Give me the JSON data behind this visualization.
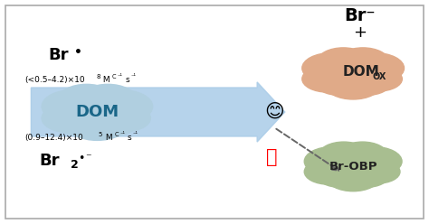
{
  "bg_color": "#ffffff",
  "border_color": "#aaaaaa",
  "arrow_color": "#aacce8",
  "dom_cloud_color": "#b0cfe0",
  "domox_cloud_color": "#e0aa88",
  "brobp_cloud_color": "#a8be90",
  "dom_text": "DOM",
  "domox_main": "DOM",
  "domox_sub": "OX",
  "brobp_text": "Br-OBP",
  "figsize": [
    4.74,
    2.48
  ],
  "dpi": 100
}
